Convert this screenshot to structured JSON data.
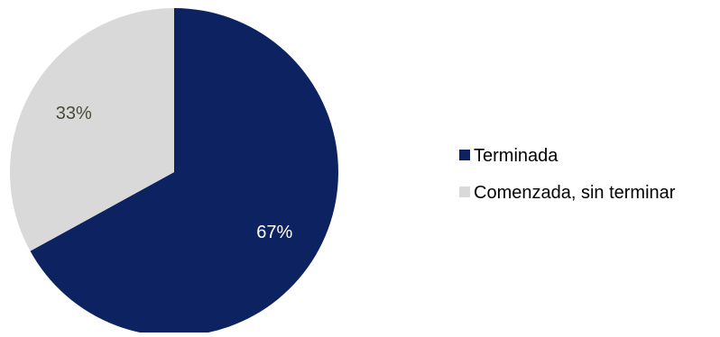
{
  "chart_data": {
    "type": "pie",
    "title": "",
    "slices": [
      {
        "label": "Terminada",
        "value": 67,
        "display": "67%",
        "color": "#0d2260",
        "label_color": "#ffffff"
      },
      {
        "label": "Comenzada, sin terminar",
        "value": 33,
        "display": "33%",
        "color": "#d9d9d9",
        "label_color": "#4b4a3a"
      }
    ],
    "start_angle_deg": 0,
    "direction": "clockwise",
    "legend_position": "right"
  }
}
